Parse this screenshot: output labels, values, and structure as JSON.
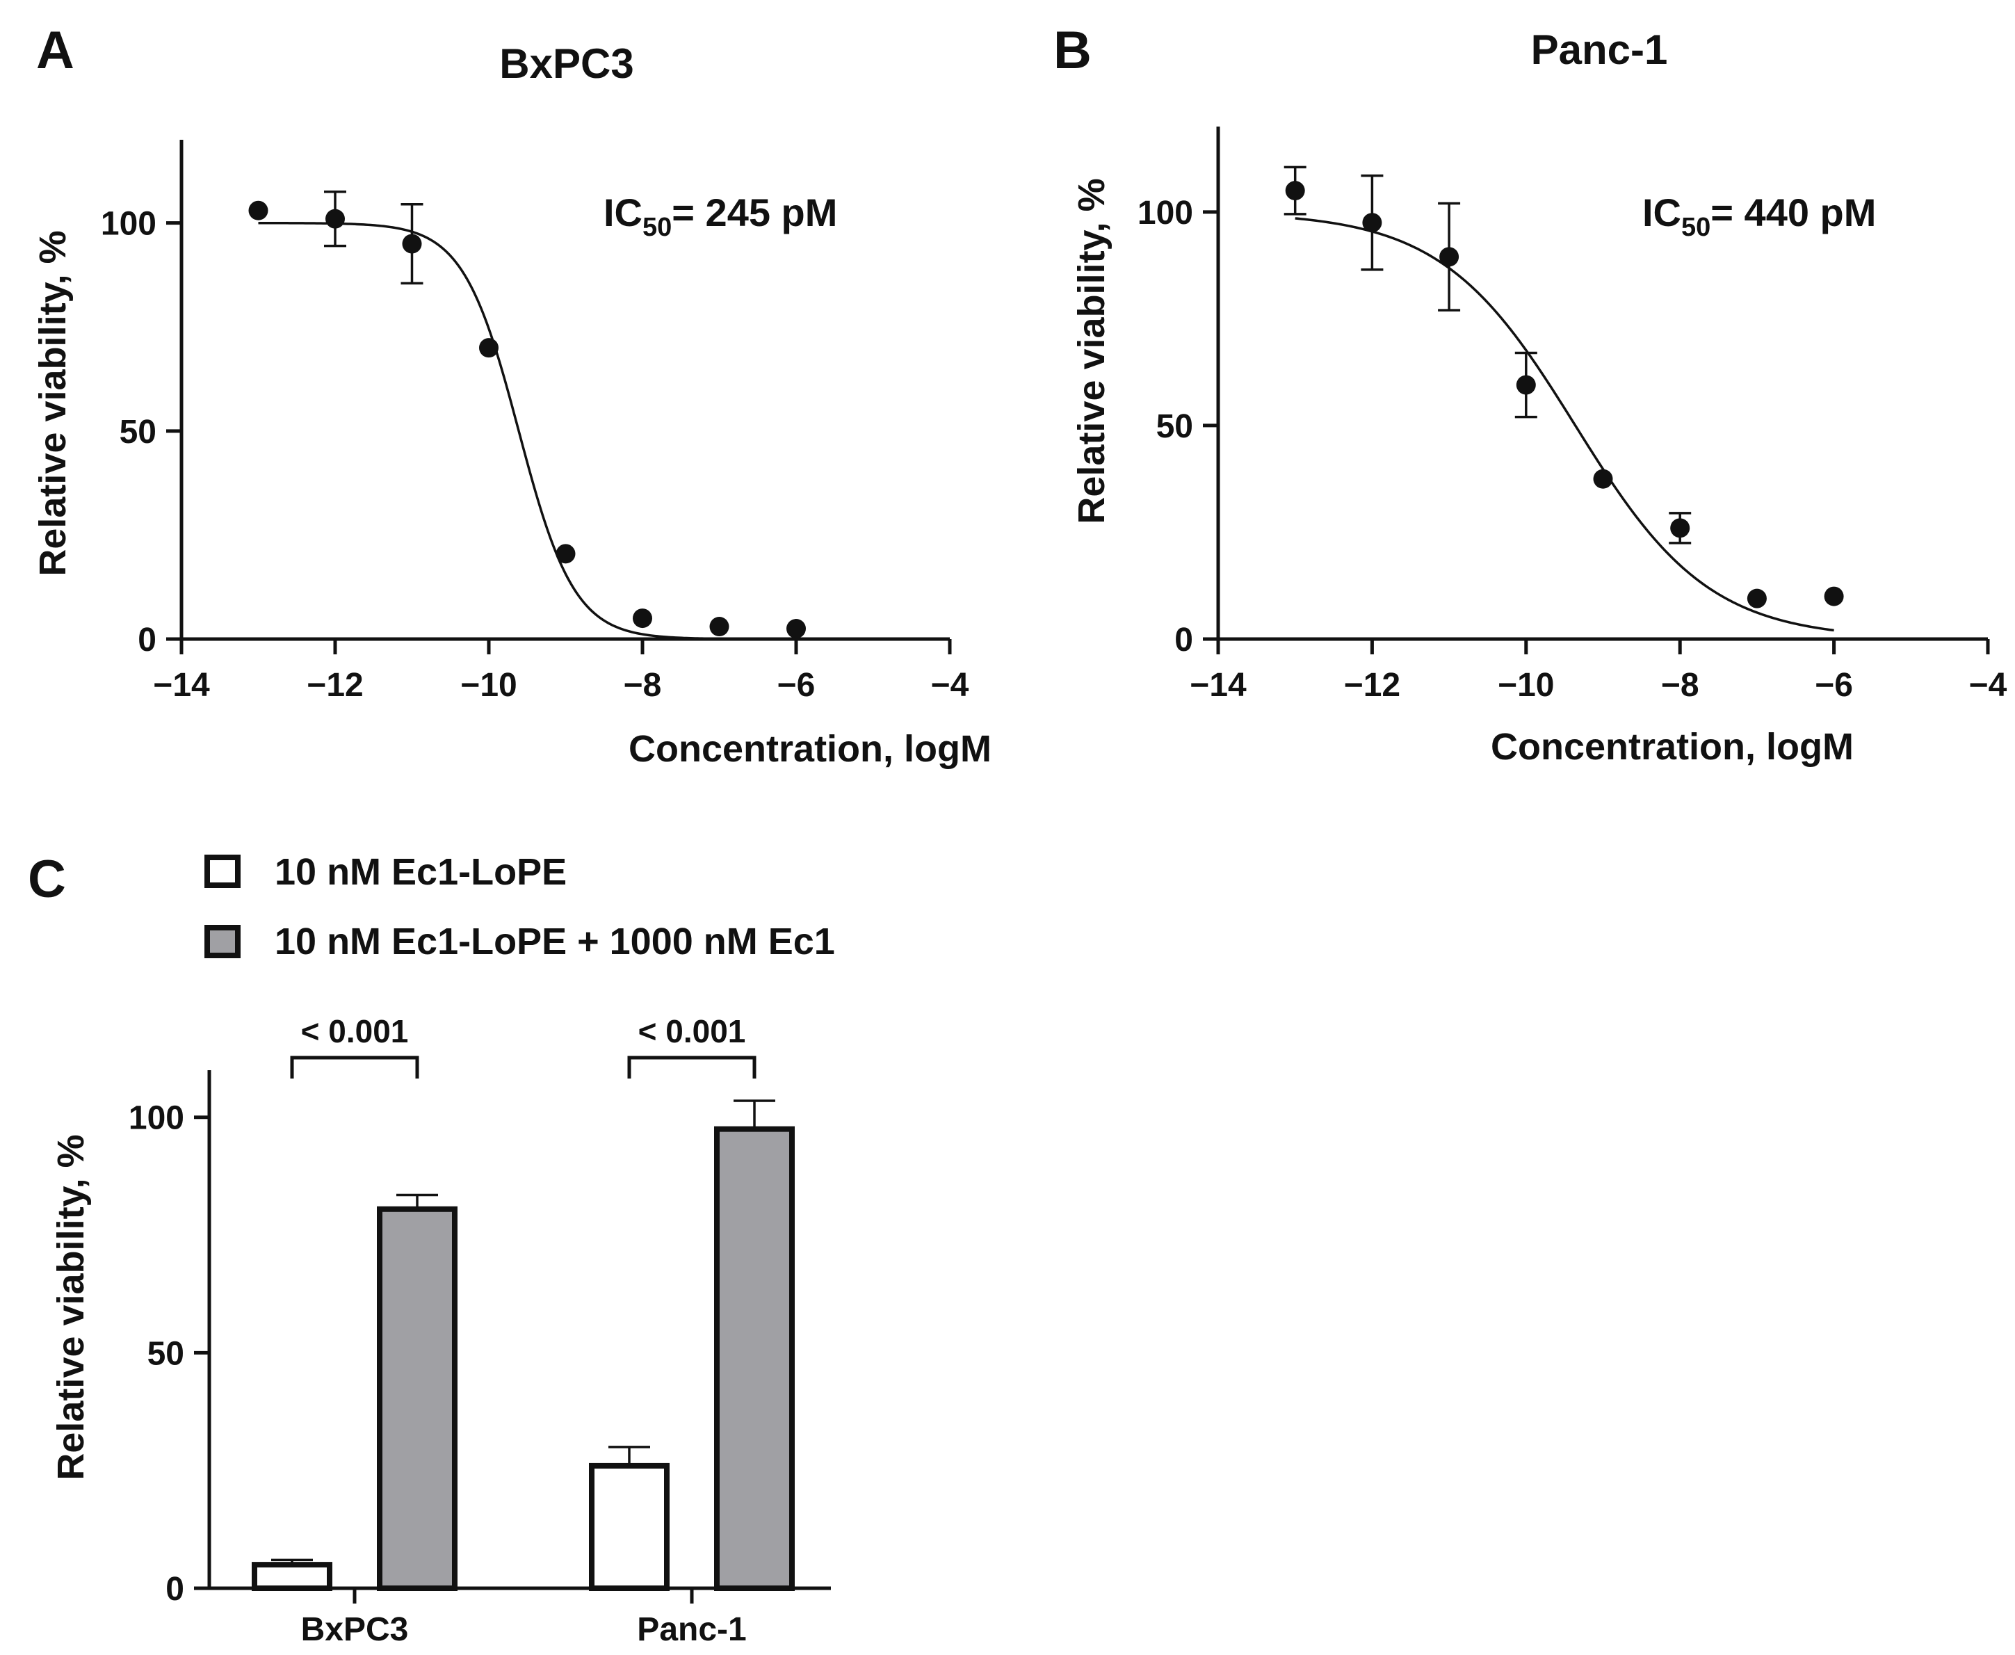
{
  "panels": {
    "A": {
      "letter": "A",
      "annotation_prefix": "IC",
      "annotation_sub": "50",
      "annotation_value": "= 245 pM"
    },
    "B": {
      "letter": "B",
      "annotation_prefix": "IC",
      "annotation_sub": "50",
      "annotation_value": "= 440 pM"
    },
    "C": {
      "letter": "C"
    }
  },
  "chart_data": [
    {
      "type": "scatter",
      "id": "A",
      "title": "BxPC3",
      "xlabel": "Concentration, logM",
      "ylabel": "Relative viability, %",
      "xlim": [
        -14,
        -4
      ],
      "ylim": [
        0,
        120
      ],
      "xticks": [
        -14,
        -12,
        -10,
        -8,
        -6,
        -4
      ],
      "yticks": [
        0,
        50,
        100
      ],
      "points": [
        {
          "x": -13,
          "y": 103,
          "err": 0
        },
        {
          "x": -12,
          "y": 101,
          "err": 6.5
        },
        {
          "x": -11,
          "y": 95,
          "err": 9.5
        },
        {
          "x": -10,
          "y": 70,
          "err": 0
        },
        {
          "x": -9,
          "y": 20.5,
          "err": 0
        },
        {
          "x": -8,
          "y": 5,
          "err": 0
        },
        {
          "x": -7,
          "y": 3,
          "err": 0
        },
        {
          "x": -6,
          "y": 2.5,
          "err": 0
        }
      ],
      "fit": {
        "top": 100,
        "bottom": 0,
        "logIC50": -9.61,
        "hill": 1.2,
        "x_range": [
          -13,
          -6
        ]
      }
    },
    {
      "type": "scatter",
      "id": "B",
      "title": "Panc-1",
      "xlabel": "Concentration, logM",
      "ylabel": "Relative viability, %",
      "xlim": [
        -14,
        -4
      ],
      "ylim": [
        0,
        120
      ],
      "xticks": [
        -14,
        -12,
        -10,
        -8,
        -6,
        -4
      ],
      "yticks": [
        0,
        50,
        100
      ],
      "points": [
        {
          "x": -13,
          "y": 105,
          "err": 5.5
        },
        {
          "x": -12,
          "y": 97.5,
          "err": 11
        },
        {
          "x": -11,
          "y": 89.5,
          "err": 12.5
        },
        {
          "x": -10,
          "y": 59.5,
          "err": 7.5
        },
        {
          "x": -9,
          "y": 37.5,
          "err": 0
        },
        {
          "x": -8,
          "y": 26,
          "err": 3.5
        },
        {
          "x": -7,
          "y": 9.5,
          "err": 0
        },
        {
          "x": -6,
          "y": 10,
          "err": 0
        }
      ],
      "fit": {
        "top": 100,
        "bottom": 0,
        "logIC50": -9.36,
        "hill": 0.5,
        "x_range": [
          -13,
          -6
        ]
      }
    },
    {
      "type": "bar",
      "id": "C",
      "categories": [
        "BxPC3",
        "Panc-1"
      ],
      "ylabel": "Relative viability, %",
      "ylim": [
        0,
        110
      ],
      "yticks": [
        0,
        50,
        100
      ],
      "series": [
        {
          "name": "10 nM Ec1-LoPE",
          "color": "#ffffff",
          "values": [
            5,
            26
          ],
          "errors": [
            1,
            4
          ]
        },
        {
          "name": "10 nM Ec1-LoPE + 1000 nM Ec1",
          "color": "#a0a0a4",
          "values": [
            80.5,
            97.5
          ],
          "errors": [
            3,
            6
          ]
        }
      ],
      "significance": [
        "< 0.001",
        "< 0.001"
      ]
    }
  ]
}
